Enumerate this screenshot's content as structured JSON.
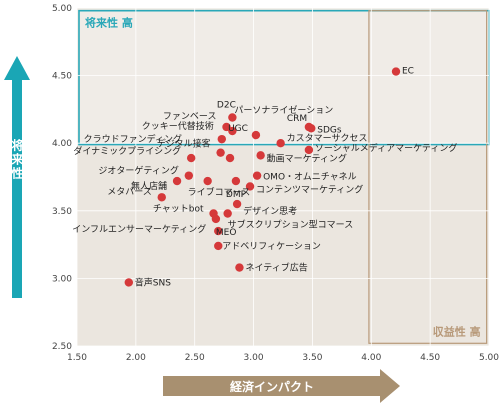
{
  "chart_data": {
    "type": "scatter",
    "xlabel": "経済インパクト",
    "ylabel": "将来性",
    "xlim": [
      1.5,
      5.0
    ],
    "ylim": [
      2.5,
      5.0
    ],
    "xticks": [
      "1.50",
      "2.00",
      "2.50",
      "3.00",
      "3.50",
      "4.00",
      "4.50",
      "5.00"
    ],
    "yticks": [
      "2.50",
      "3.00",
      "3.50",
      "4.00",
      "4.50",
      "5.00"
    ],
    "zones": [
      {
        "label": "将来性 高",
        "x_range": [
          1.5,
          5.0
        ],
        "y_range": [
          3.99,
          4.98
        ],
        "color": "#2aa8b8"
      },
      {
        "label": "収益性 高",
        "x_range": [
          3.98,
          4.98
        ],
        "y_range": [
          2.52,
          4.98
        ],
        "color": "#b89a7a"
      }
    ],
    "points": [
      {
        "label": "EC",
        "x": 4.21,
        "y": 4.53
      },
      {
        "label": "D2C",
        "x": 2.82,
        "y": 4.19
      },
      {
        "label": "ファンベース",
        "x": 2.77,
        "y": 4.12
      },
      {
        "label": "パーソナライゼーション",
        "x": 2.82,
        "y": 4.09
      },
      {
        "label": "クッキー代替技術",
        "x": 2.73,
        "y": 4.03
      },
      {
        "label": "CRM",
        "x": 3.47,
        "y": 4.12
      },
      {
        "label": "SDGs",
        "x": 3.49,
        "y": 4.11
      },
      {
        "label": "UGC",
        "x": 3.02,
        "y": 4.06
      },
      {
        "label": "デジタル接客",
        "x": 2.72,
        "y": 3.93
      },
      {
        "label": "カスタマーサクセス",
        "x": 3.23,
        "y": 4.0
      },
      {
        "label": "ダイナミックプライシング",
        "x": 2.47,
        "y": 3.89
      },
      {
        "label": "ソーシャルメディアマーケティング",
        "x": 3.47,
        "y": 3.95
      },
      {
        "label": "クラウドファンディング",
        "x": 2.8,
        "y": 3.89
      },
      {
        "label": "動画マーケティング",
        "x": 3.06,
        "y": 3.91
      },
      {
        "label": "ジオターゲティング",
        "x": 2.45,
        "y": 3.76
      },
      {
        "label": "OMO・オムニチャネル",
        "x": 3.03,
        "y": 3.76
      },
      {
        "label": "無人店舗",
        "x": 2.35,
        "y": 3.72
      },
      {
        "label": "ライブコマース",
        "x": 2.61,
        "y": 3.72
      },
      {
        "label": "DMP",
        "x": 2.85,
        "y": 3.72
      },
      {
        "label": "コンテンツマーケティング",
        "x": 2.97,
        "y": 3.68
      },
      {
        "label": "メタバース",
        "x": 2.22,
        "y": 3.6
      },
      {
        "label": "デザイン思考",
        "x": 2.86,
        "y": 3.55
      },
      {
        "label": "チャットbot",
        "x": 2.66,
        "y": 3.48
      },
      {
        "label": "サブスクリプション型コマース",
        "x": 2.78,
        "y": 3.48
      },
      {
        "label": "MEO",
        "x": 2.68,
        "y": 3.44
      },
      {
        "label": "インフルエンサーマーケティング",
        "x": 2.7,
        "y": 3.35
      },
      {
        "label": "アドベリフィケーション",
        "x": 2.7,
        "y": 3.24
      },
      {
        "label": "ネイティブ広告",
        "x": 2.88,
        "y": 3.08
      },
      {
        "label": "音声SNS",
        "x": 1.94,
        "y": 2.97
      }
    ]
  }
}
